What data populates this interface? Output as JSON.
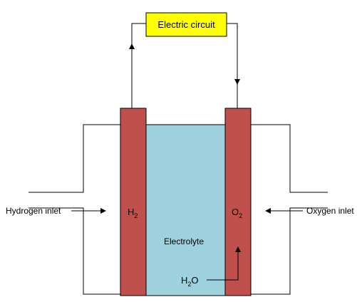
{
  "circuit": {
    "label": "Electric circuit"
  },
  "anode": {
    "label": "H",
    "sub": "2"
  },
  "cathode": {
    "label": "O",
    "sub": "2"
  },
  "electrolyte": {
    "label": "Electrolyte"
  },
  "water": {
    "label": "H",
    "sub": "2",
    "tail": "O"
  },
  "inlets": {
    "hydrogen": "Hydrogen inlet",
    "oxygen": "Oxygen inlet"
  }
}
